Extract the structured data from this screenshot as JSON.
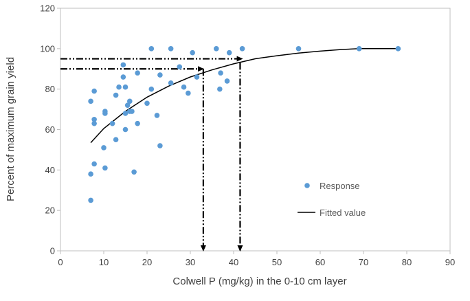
{
  "chart_data": {
    "type": "scatter",
    "xlabel": "Colwell P (mg/kg) in the 0-10 cm layer",
    "ylabel": "Percent of maximum grain yield",
    "xlim": [
      0,
      90
    ],
    "ylim": [
      0,
      120
    ],
    "x_ticks": [
      "0",
      "10",
      "20",
      "30",
      "40",
      "50",
      "60",
      "70",
      "80",
      "90"
    ],
    "y_ticks": [
      "0",
      "20",
      "40",
      "60",
      "80",
      "100",
      "120"
    ],
    "grid": false,
    "legend_position": "right",
    "series": [
      {
        "name": "Response",
        "kind": "scatter",
        "color": "#5b9bd5",
        "points": [
          [
            7,
            25
          ],
          [
            7,
            38
          ],
          [
            7,
            74
          ],
          [
            7.8,
            43
          ],
          [
            7.8,
            63
          ],
          [
            7.8,
            65
          ],
          [
            7.8,
            79
          ],
          [
            10,
            51
          ],
          [
            10.3,
            41
          ],
          [
            10.3,
            68
          ],
          [
            10.3,
            69
          ],
          [
            12,
            63
          ],
          [
            12.8,
            55
          ],
          [
            12.8,
            77
          ],
          [
            13.5,
            81
          ],
          [
            14.5,
            86
          ],
          [
            14.5,
            92
          ],
          [
            15,
            60
          ],
          [
            15,
            68
          ],
          [
            15,
            81
          ],
          [
            15.5,
            72
          ],
          [
            16,
            69
          ],
          [
            16,
            74
          ],
          [
            16.5,
            69
          ],
          [
            17,
            39
          ],
          [
            17.8,
            63
          ],
          [
            17.8,
            88
          ],
          [
            20,
            73
          ],
          [
            21,
            80
          ],
          [
            21,
            100
          ],
          [
            22.3,
            67
          ],
          [
            23,
            52
          ],
          [
            23,
            87
          ],
          [
            25.5,
            83
          ],
          [
            25.5,
            100
          ],
          [
            27.5,
            91
          ],
          [
            28.5,
            81
          ],
          [
            29.5,
            78
          ],
          [
            30.5,
            98
          ],
          [
            31.5,
            86
          ],
          [
            36,
            100
          ],
          [
            36.8,
            80
          ],
          [
            37,
            88
          ],
          [
            38.5,
            84
          ],
          [
            39,
            98
          ],
          [
            42,
            100
          ],
          [
            55,
            100
          ],
          [
            69,
            100
          ],
          [
            78,
            100
          ]
        ]
      },
      {
        "name": "Fitted value",
        "kind": "line",
        "color": "#000000",
        "points": [
          [
            7,
            53.5
          ],
          [
            10,
            60.5
          ],
          [
            15,
            69
          ],
          [
            20,
            76
          ],
          [
            25,
            81.5
          ],
          [
            30,
            86
          ],
          [
            35,
            89.5
          ],
          [
            40,
            92.5
          ],
          [
            45,
            95
          ],
          [
            50,
            96.5
          ],
          [
            55,
            97.8
          ],
          [
            60,
            98.8
          ],
          [
            65,
            99.6
          ],
          [
            69,
            100
          ],
          [
            78,
            100
          ]
        ]
      }
    ],
    "annotations": [
      {
        "kind": "dash-dot-arrow",
        "from": [
          0,
          90
        ],
        "to": [
          33,
          90
        ]
      },
      {
        "kind": "dash-dot-arrow",
        "from": [
          33,
          90
        ],
        "to": [
          33,
          0
        ]
      },
      {
        "kind": "dash-dot-arrow",
        "from": [
          0,
          95
        ],
        "to": [
          42,
          95
        ]
      },
      {
        "kind": "dash-dot-arrow",
        "from": [
          41.5,
          93
        ],
        "to": [
          41.5,
          0
        ]
      }
    ]
  }
}
